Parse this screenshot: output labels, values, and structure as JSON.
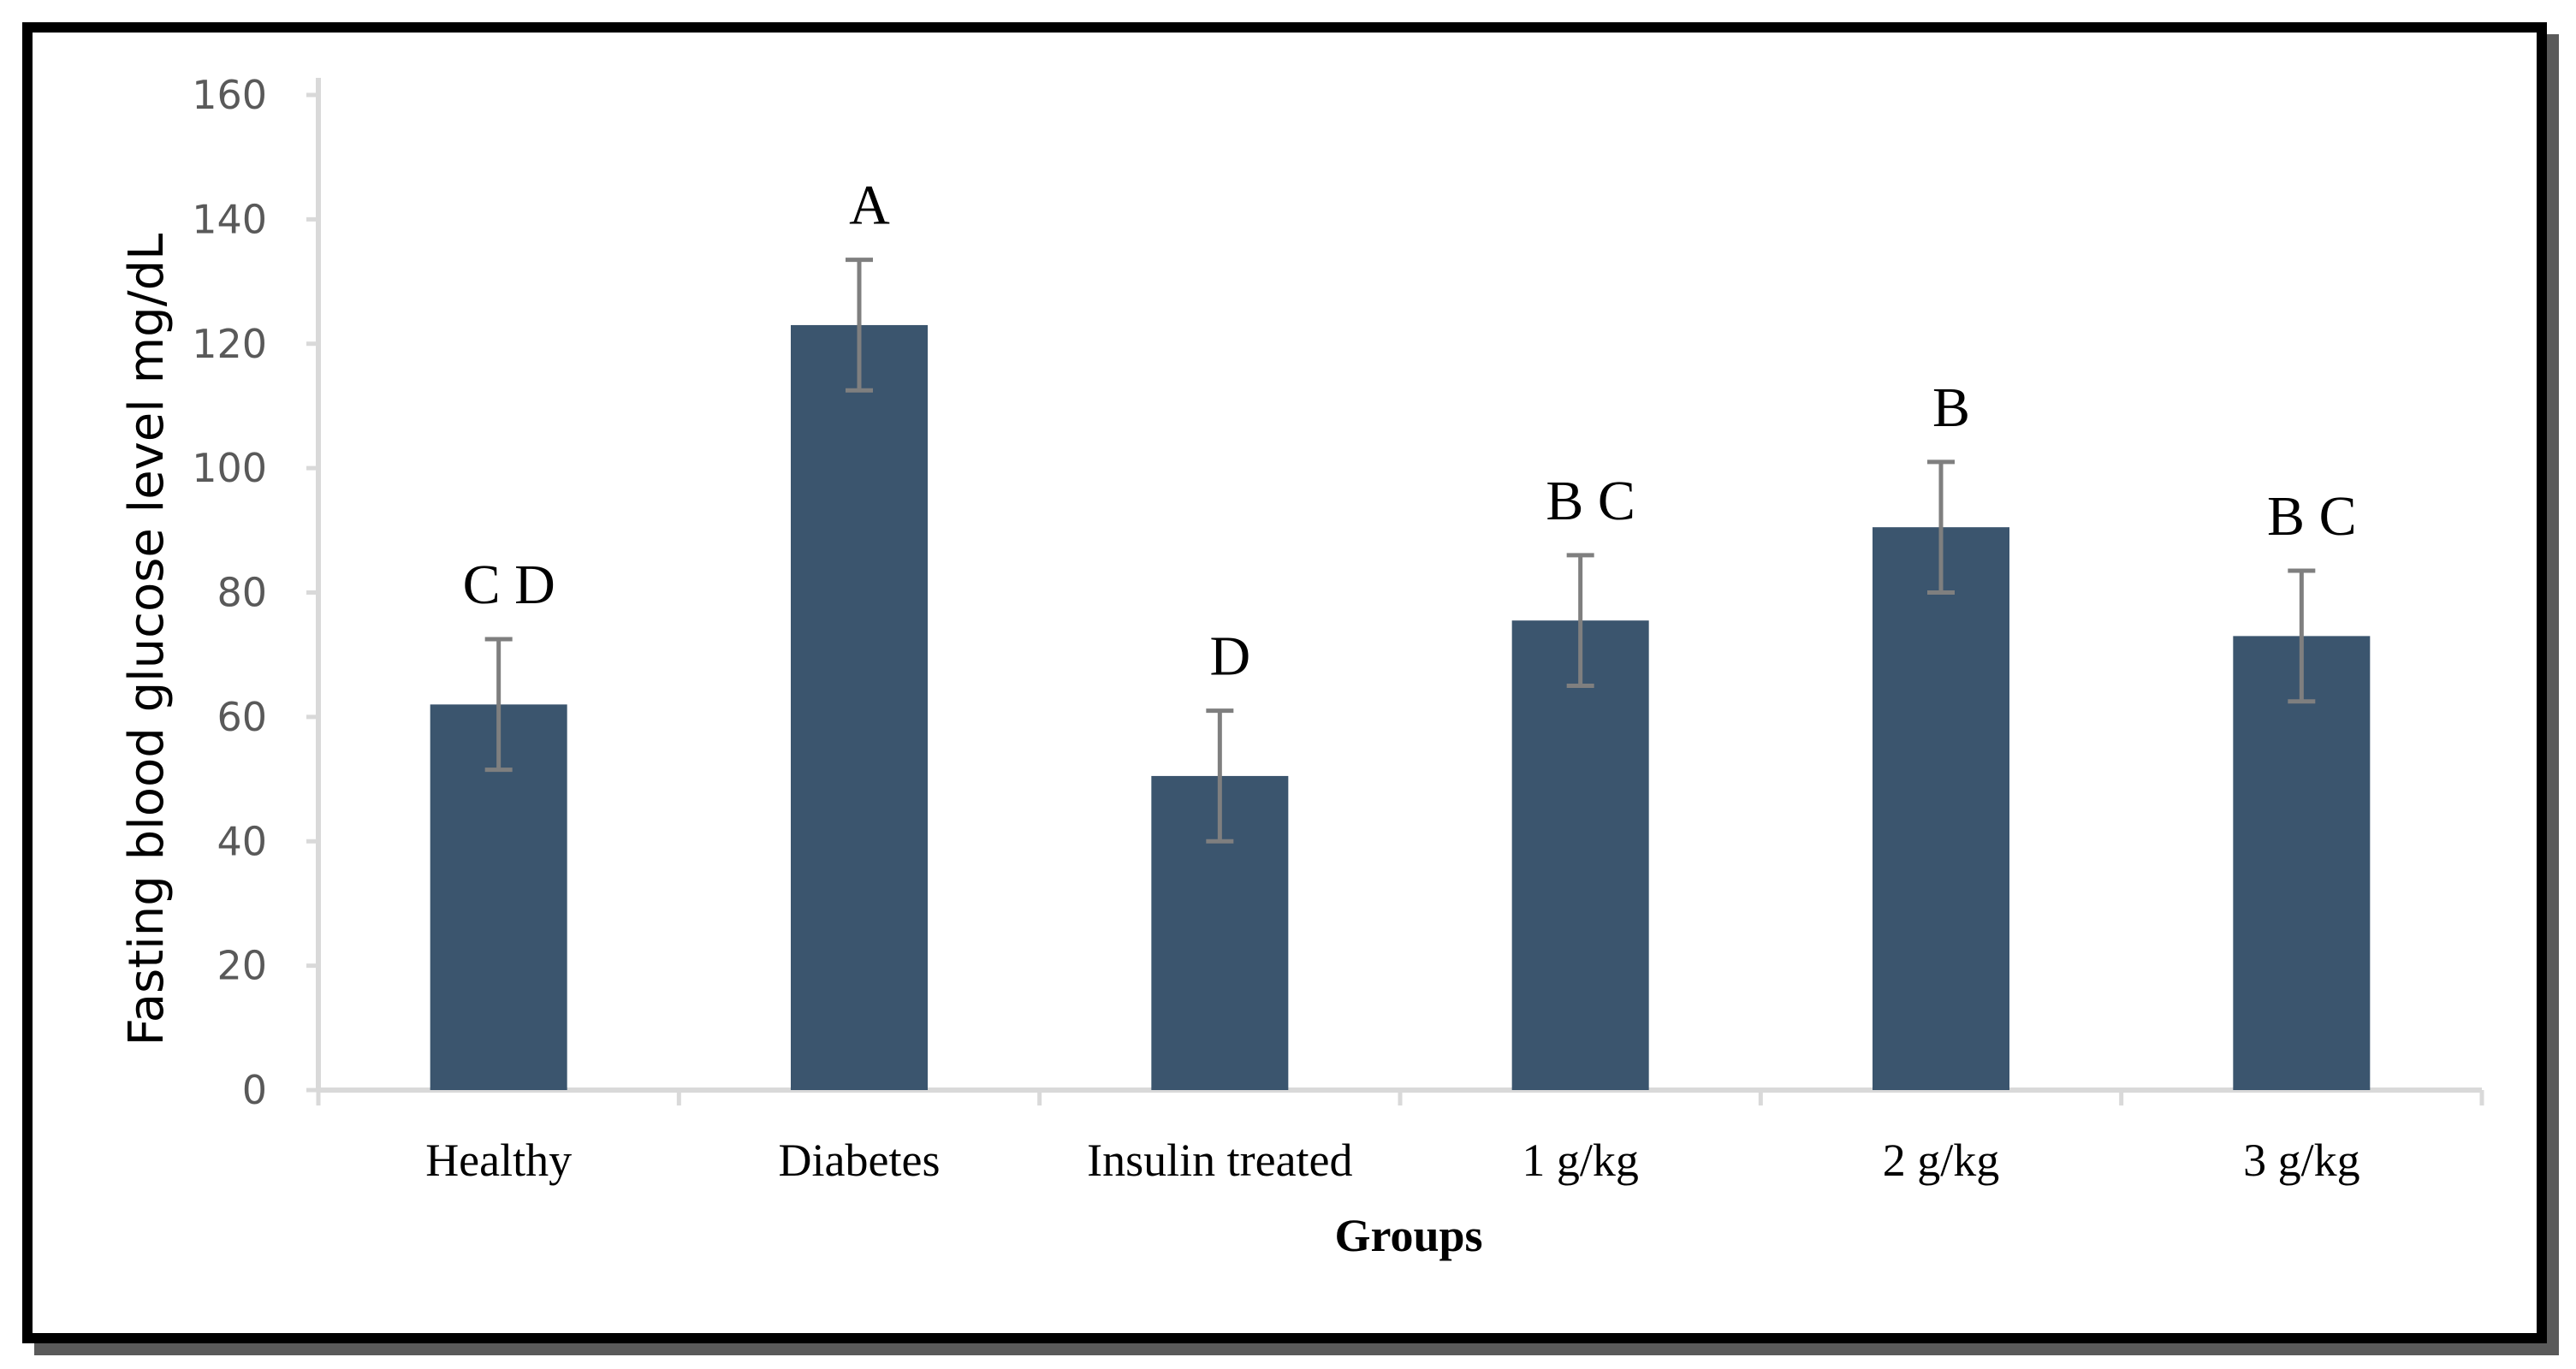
{
  "chart_data": {
    "type": "bar",
    "title": "",
    "xlabel": "Groups",
    "ylabel": "Fasting blood glucose level mg/dL",
    "ylim": [
      0,
      160
    ],
    "yticks": [
      0,
      20,
      40,
      60,
      80,
      100,
      120,
      140,
      160
    ],
    "grid": false,
    "categories": [
      "Healthy",
      "Diabetes",
      "Insulin treated",
      "1 g/kg",
      "2 g/kg",
      "3 g/kg"
    ],
    "values": [
      62,
      123,
      50.5,
      75.5,
      90.5,
      73
    ],
    "errors": [
      10.5,
      10.5,
      10.5,
      10.5,
      10.5,
      10.5
    ],
    "significance_letters": [
      "C D",
      "A",
      "D",
      "B C",
      "B",
      "B C"
    ],
    "bar_color": "#3b556e",
    "error_bar_color": "#7f7f7f",
    "axis_color": "#d9d9d9"
  }
}
